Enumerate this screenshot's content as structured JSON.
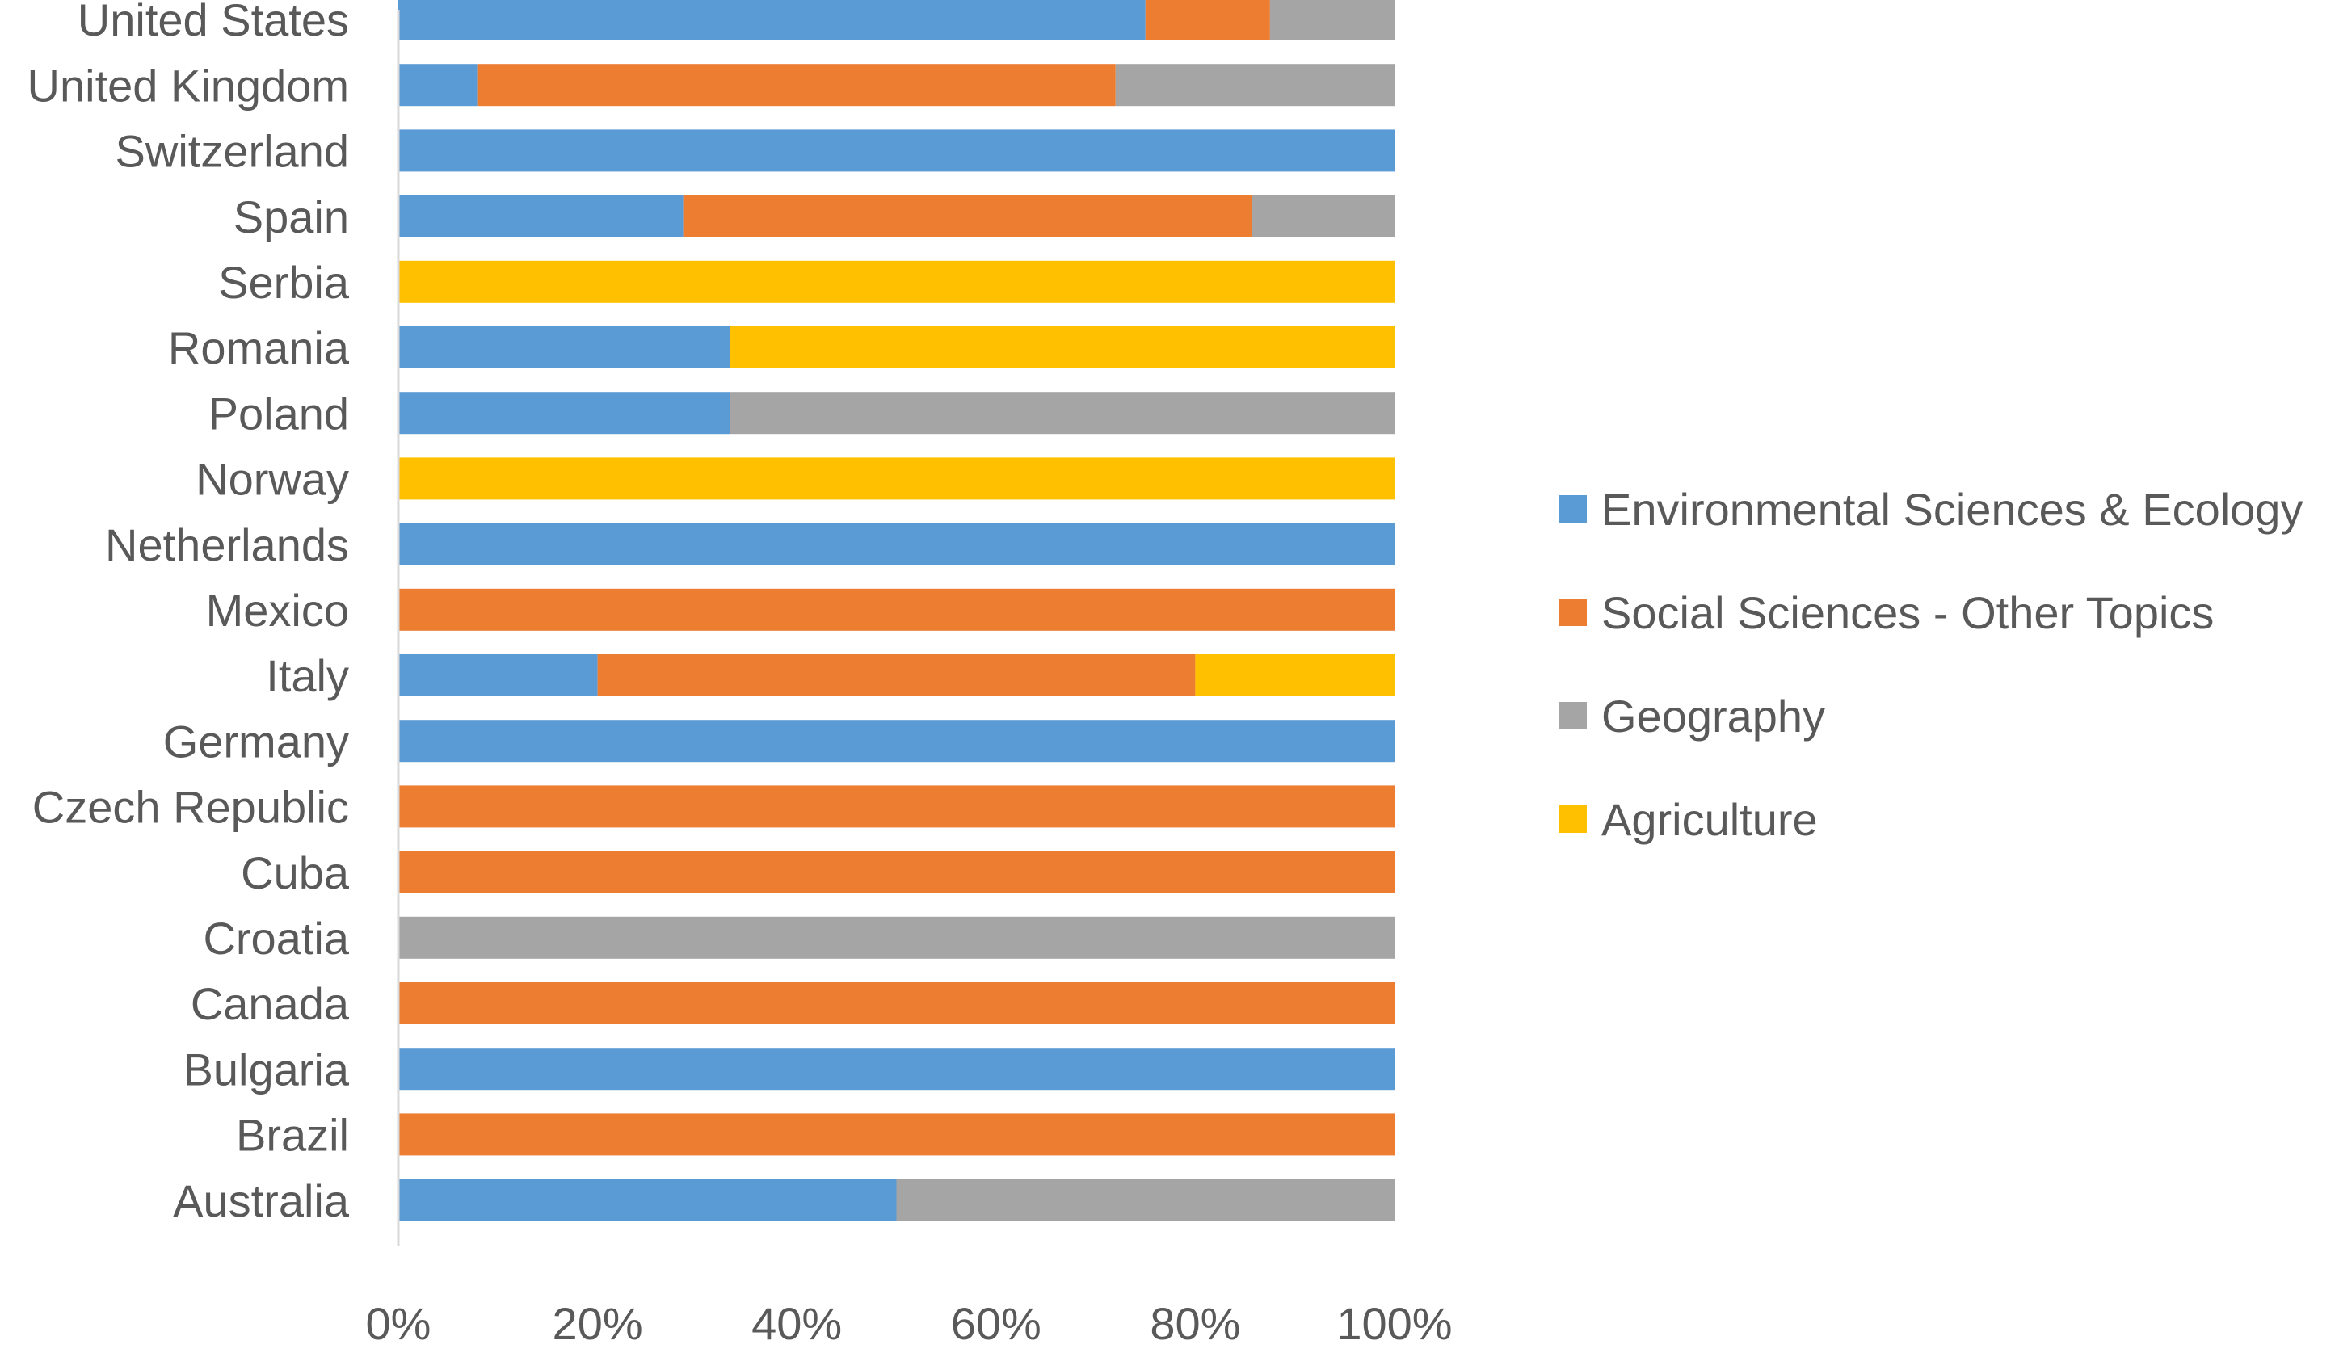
{
  "chart_data": {
    "type": "bar",
    "orientation": "horizontal",
    "stacked": "percent",
    "title": "",
    "xlabel": "",
    "ylabel": "",
    "xlim": [
      0,
      100
    ],
    "x_ticks": [
      "0%",
      "20%",
      "40%",
      "60%",
      "80%",
      "100%"
    ],
    "x_tick_values": [
      0,
      20,
      40,
      60,
      80,
      100
    ],
    "grid": false,
    "legend_position": "right",
    "categories": [
      "United States",
      "United Kingdom",
      "Switzerland",
      "Spain",
      "Serbia",
      "Romania",
      "Poland",
      "Norway",
      "Netherlands",
      "Mexico",
      "Italy",
      "Germany",
      "Czech Republic",
      "Cuba",
      "Croatia",
      "Canada",
      "Bulgaria",
      "Brazil",
      "Australia"
    ],
    "series": [
      {
        "name": "Environmental Sciences & Ecology",
        "color": "#5B9BD5",
        "values": [
          75,
          8,
          100,
          28.6,
          0,
          33.3,
          33.3,
          0,
          100,
          0,
          20,
          100,
          0,
          0,
          0,
          0,
          100,
          0,
          50
        ]
      },
      {
        "name": "Social Sciences - Other Topics",
        "color": "#ED7D31",
        "values": [
          12.5,
          64,
          0,
          57.1,
          0,
          0,
          0,
          0,
          0,
          100,
          60,
          0,
          100,
          100,
          0,
          100,
          0,
          100,
          0
        ]
      },
      {
        "name": "Geography",
        "color": "#A5A5A5",
        "values": [
          12.5,
          28,
          0,
          14.3,
          0,
          0,
          66.7,
          0,
          0,
          0,
          0,
          0,
          0,
          0,
          100,
          0,
          0,
          0,
          50
        ]
      },
      {
        "name": "Agriculture",
        "color": "#FFC000",
        "values": [
          0,
          0,
          0,
          0,
          100,
          66.7,
          0,
          100,
          0,
          0,
          20,
          0,
          0,
          0,
          0,
          0,
          0,
          0,
          0
        ]
      }
    ]
  }
}
